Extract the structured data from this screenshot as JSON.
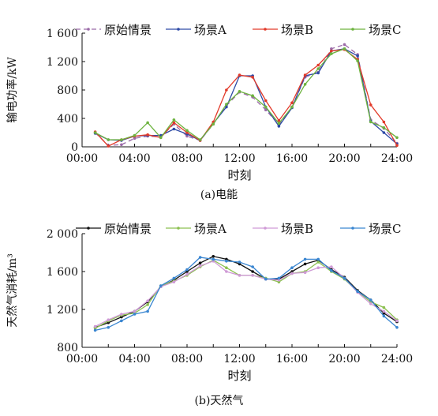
{
  "chart_data": [
    {
      "type": "line",
      "caption": "(a)电能",
      "xlabel": "时刻",
      "ylabel": "输电功率/kW",
      "xlim": [
        0,
        24
      ],
      "ylim": [
        0,
        1600
      ],
      "x_ticks": [
        "00:00",
        "04:00",
        "08:00",
        "12:00",
        "16:00",
        "20:00",
        "24:00"
      ],
      "y_ticks": [
        "0",
        "400",
        "800",
        "1 200",
        "1 600"
      ],
      "legend_position": "top",
      "x": [
        1,
        2,
        3,
        4,
        5,
        6,
        7,
        8,
        9,
        10,
        11,
        12,
        13,
        14,
        15,
        16,
        17,
        18,
        19,
        20,
        21,
        22,
        23,
        24
      ],
      "series": [
        {
          "name": "原始情景",
          "color": "#9b6aa8",
          "style": "dashed",
          "values": [
            200,
            20,
            30,
            120,
            150,
            140,
            320,
            150,
            90,
            320,
            580,
            770,
            700,
            520,
            310,
            560,
            980,
            1050,
            1380,
            1440,
            1300,
            380,
            260,
            50
          ]
        },
        {
          "name": "场景A",
          "color": "#2d4aa6",
          "style": "solid",
          "values": [
            190,
            100,
            90,
            150,
            160,
            160,
            250,
            180,
            90,
            330,
            560,
            1000,
            1000,
            560,
            290,
            550,
            1000,
            1040,
            1350,
            1380,
            1280,
            360,
            200,
            40
          ]
        },
        {
          "name": "场景B",
          "color": "#e23a2a",
          "style": "solid",
          "values": [
            210,
            10,
            100,
            150,
            170,
            130,
            340,
            200,
            90,
            350,
            800,
            1010,
            980,
            650,
            370,
            620,
            1010,
            1150,
            1350,
            1370,
            1230,
            590,
            350,
            20
          ]
        },
        {
          "name": "场景C",
          "color": "#6db33f",
          "style": "solid",
          "values": [
            200,
            100,
            100,
            160,
            340,
            130,
            380,
            230,
            100,
            320,
            600,
            780,
            720,
            560,
            330,
            560,
            880,
            1100,
            1310,
            1380,
            1210,
            350,
            270,
            130
          ]
        }
      ]
    },
    {
      "type": "line",
      "caption": "(b)天然气",
      "xlabel": "时刻",
      "ylabel": "天然气消耗/m³",
      "xlim": [
        0,
        24
      ],
      "ylim": [
        800,
        2000
      ],
      "x_ticks": [
        "00:00",
        "04:00",
        "08:00",
        "12:00",
        "16:00",
        "20:00",
        "24:00"
      ],
      "y_ticks": [
        "800",
        "1 200",
        "1 600",
        "2 000"
      ],
      "legend_position": "top",
      "x": [
        1,
        2,
        3,
        4,
        5,
        6,
        7,
        8,
        9,
        10,
        11,
        12,
        13,
        14,
        15,
        16,
        17,
        18,
        19,
        20,
        21,
        22,
        23,
        24
      ],
      "series": [
        {
          "name": "原始情景",
          "color": "#111111",
          "style": "solid",
          "values": [
            1010,
            1060,
            1120,
            1180,
            1280,
            1440,
            1510,
            1600,
            1690,
            1760,
            1730,
            1680,
            1600,
            1520,
            1520,
            1600,
            1680,
            1720,
            1620,
            1540,
            1400,
            1300,
            1160,
            1070
          ]
        },
        {
          "name": "场景A",
          "color": "#8cc051",
          "style": "solid",
          "values": [
            1000,
            1080,
            1140,
            1160,
            1250,
            1450,
            1500,
            1560,
            1650,
            1720,
            1640,
            1560,
            1560,
            1530,
            1490,
            1580,
            1600,
            1700,
            1600,
            1520,
            1390,
            1280,
            1220,
            1090
          ]
        },
        {
          "name": "场景B",
          "color": "#cf9ad6",
          "style": "solid",
          "values": [
            1020,
            1090,
            1150,
            1180,
            1290,
            1440,
            1490,
            1570,
            1660,
            1710,
            1600,
            1560,
            1560,
            1520,
            1510,
            1580,
            1590,
            1640,
            1650,
            1530,
            1380,
            1260,
            1180,
            1080
          ]
        },
        {
          "name": "场景C",
          "color": "#3a86d1",
          "style": "solid",
          "values": [
            980,
            1010,
            1080,
            1150,
            1180,
            1450,
            1530,
            1620,
            1750,
            1730,
            1710,
            1700,
            1650,
            1520,
            1530,
            1640,
            1730,
            1730,
            1610,
            1530,
            1390,
            1300,
            1130,
            1010
          ]
        }
      ]
    }
  ]
}
